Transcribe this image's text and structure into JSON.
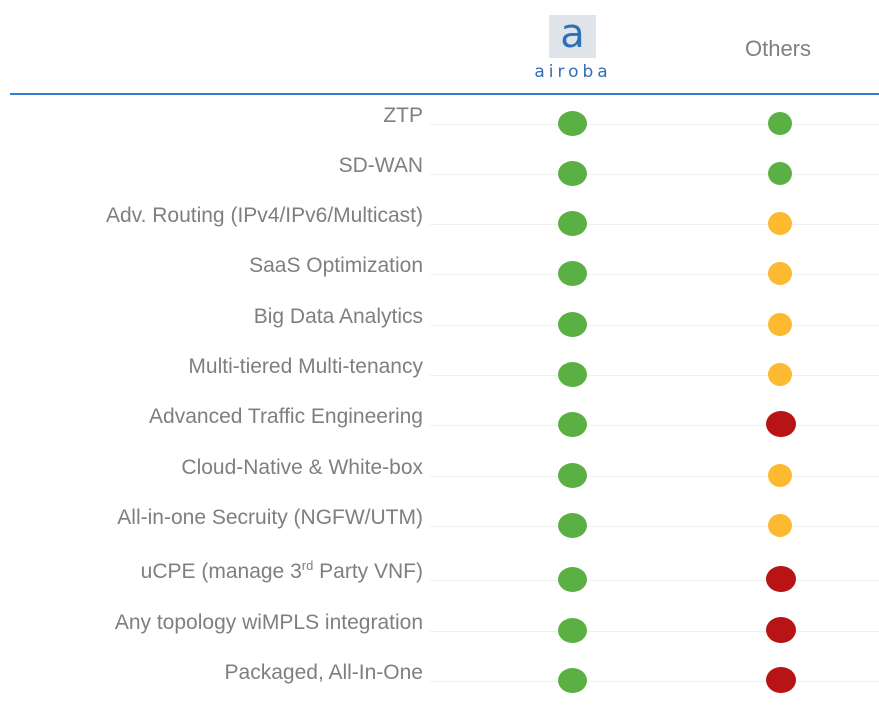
{
  "header": {
    "logo_letter": "a",
    "logo_word": "airoba",
    "others_label": "Others"
  },
  "colors": {
    "green": "#5bb043",
    "yellow": "#fdb930",
    "red": "#b81315",
    "accent": "#2f7fd0"
  },
  "rows": [
    {
      "label": "ZTP",
      "airoba": "green",
      "others": "green"
    },
    {
      "label": "SD-WAN",
      "airoba": "green",
      "others": "green"
    },
    {
      "label": "Adv. Routing (IPv4/IPv6/Multicast)",
      "airoba": "green",
      "others": "yellow"
    },
    {
      "label": "SaaS Optimization",
      "airoba": "green",
      "others": "yellow"
    },
    {
      "label": "Big Data Analytics",
      "airoba": "green",
      "others": "yellow"
    },
    {
      "label": "Multi-tiered Multi-tenancy",
      "airoba": "green",
      "others": "yellow"
    },
    {
      "label": "Advanced Traffic Engineering",
      "airoba": "green",
      "others": "red"
    },
    {
      "label": "Cloud-Native & White-box",
      "airoba": "green",
      "others": "yellow"
    },
    {
      "label": "All-in-one Secruity (NGFW/UTM)",
      "airoba": "green",
      "others": "yellow"
    },
    {
      "label_pre": "uCPE (manage 3",
      "label_sup": "rd",
      "label_post": " Party VNF)",
      "airoba": "green",
      "others": "red"
    },
    {
      "label": "Any topology wiMPLS integration",
      "airoba": "green",
      "others": "red"
    },
    {
      "label": "Packaged, All-In-One",
      "airoba": "green",
      "others": "red"
    }
  ]
}
